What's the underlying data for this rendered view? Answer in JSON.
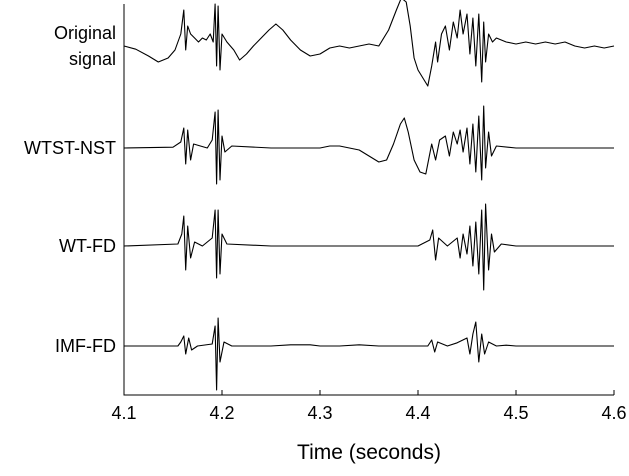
{
  "chart_data": {
    "type": "line",
    "title": "",
    "xlabel": "Time (seconds)",
    "ylabel": "",
    "xlim": [
      4.1,
      4.6
    ],
    "xticks": [
      4.1,
      4.2,
      4.3,
      4.4,
      4.5,
      4.6
    ],
    "xtick_labels": [
      "4.1",
      "4.2",
      "4.3",
      "4.4",
      "4.5",
      "4.6"
    ],
    "grid": false,
    "legend": "none",
    "series": [
      {
        "name": "Original\nsignal",
        "label_lines": [
          "Original",
          "signal"
        ],
        "points": [
          [
            4.1,
            0
          ],
          [
            4.112,
            -0.08
          ],
          [
            4.125,
            -0.25
          ],
          [
            4.135,
            -0.4
          ],
          [
            4.145,
            -0.3
          ],
          [
            4.152,
            -0.1
          ],
          [
            4.158,
            0.3
          ],
          [
            4.161,
            0.9
          ],
          [
            4.163,
            -0.1
          ],
          [
            4.165,
            0.5
          ],
          [
            4.168,
            0.3
          ],
          [
            4.172,
            0.2
          ],
          [
            4.176,
            0.1
          ],
          [
            4.18,
            0.2
          ],
          [
            4.184,
            0.15
          ],
          [
            4.188,
            0.3
          ],
          [
            4.191,
            0.1
          ],
          [
            4.193,
            1.05
          ],
          [
            4.1945,
            -0.5
          ],
          [
            4.196,
            1.0
          ],
          [
            4.198,
            -0.6
          ],
          [
            4.2,
            0.3
          ],
          [
            4.205,
            0.1
          ],
          [
            4.212,
            -0.1
          ],
          [
            4.218,
            -0.35
          ],
          [
            4.225,
            -0.2
          ],
          [
            4.232,
            0
          ],
          [
            4.24,
            0.2
          ],
          [
            4.248,
            0.4
          ],
          [
            4.255,
            0.55
          ],
          [
            4.262,
            0.4
          ],
          [
            4.27,
            0.15
          ],
          [
            4.28,
            -0.1
          ],
          [
            4.29,
            -0.25
          ],
          [
            4.3,
            -0.2
          ],
          [
            4.31,
            -0.05
          ],
          [
            4.32,
            0
          ],
          [
            4.33,
            -0.05
          ],
          [
            4.34,
            0
          ],
          [
            4.35,
            0.05
          ],
          [
            4.36,
            0
          ],
          [
            4.37,
            0.4
          ],
          [
            4.378,
            0.9
          ],
          [
            4.383,
            1.2
          ],
          [
            4.388,
            1.1
          ],
          [
            4.392,
            0.5
          ],
          [
            4.396,
            -0.3
          ],
          [
            4.4,
            -0.6
          ],
          [
            4.405,
            -0.8
          ],
          [
            4.41,
            -1.0
          ],
          [
            4.414,
            -0.5
          ],
          [
            4.418,
            0.1
          ],
          [
            4.42,
            -0.4
          ],
          [
            4.424,
            0.3
          ],
          [
            4.428,
            0.5
          ],
          [
            4.432,
            -0.1
          ],
          [
            4.436,
            0.6
          ],
          [
            4.44,
            0.2
          ],
          [
            4.443,
            0.9
          ],
          [
            4.446,
            0.3
          ],
          [
            4.45,
            0.8
          ],
          [
            4.453,
            -0.2
          ],
          [
            4.456,
            0.7
          ],
          [
            4.459,
            -0.5
          ],
          [
            4.462,
            0.8
          ],
          [
            4.465,
            -0.9
          ],
          [
            4.467,
            0.6
          ],
          [
            4.469,
            -0.4
          ],
          [
            4.472,
            0.3
          ],
          [
            4.476,
            0.1
          ],
          [
            4.48,
            0.2
          ],
          [
            4.49,
            0.1
          ],
          [
            4.5,
            0.05
          ],
          [
            4.51,
            0.1
          ],
          [
            4.52,
            0.05
          ],
          [
            4.53,
            0.1
          ],
          [
            4.54,
            0.05
          ],
          [
            4.55,
            0.1
          ],
          [
            4.56,
            0
          ],
          [
            4.57,
            -0.05
          ],
          [
            4.58,
            0
          ],
          [
            4.59,
            -0.05
          ],
          [
            4.6,
            0
          ]
        ]
      },
      {
        "name": "WTST-NST",
        "label_lines": [
          "WTST-NST"
        ],
        "points": [
          [
            4.1,
            0
          ],
          [
            4.15,
            0.02
          ],
          [
            4.158,
            0.15
          ],
          [
            4.161,
            0.5
          ],
          [
            4.163,
            -0.4
          ],
          [
            4.165,
            0.45
          ],
          [
            4.168,
            -0.3
          ],
          [
            4.171,
            0.1
          ],
          [
            4.178,
            0.05
          ],
          [
            4.185,
            0
          ],
          [
            4.19,
            0.2
          ],
          [
            4.193,
            0.9
          ],
          [
            4.1945,
            -0.9
          ],
          [
            4.196,
            0.95
          ],
          [
            4.198,
            -0.8
          ],
          [
            4.2,
            0.3
          ],
          [
            4.203,
            -0.1
          ],
          [
            4.21,
            0.05
          ],
          [
            4.25,
            0
          ],
          [
            4.3,
            0
          ],
          [
            4.31,
            0.05
          ],
          [
            4.32,
            0.05
          ],
          [
            4.33,
            0
          ],
          [
            4.34,
            -0.05
          ],
          [
            4.35,
            -0.2
          ],
          [
            4.36,
            -0.35
          ],
          [
            4.368,
            -0.3
          ],
          [
            4.375,
            0.1
          ],
          [
            4.382,
            0.6
          ],
          [
            4.386,
            0.75
          ],
          [
            4.39,
            0.4
          ],
          [
            4.396,
            -0.3
          ],
          [
            4.402,
            -0.6
          ],
          [
            4.408,
            -0.65
          ],
          [
            4.414,
            0.1
          ],
          [
            4.418,
            -0.3
          ],
          [
            4.422,
            0.2
          ],
          [
            4.428,
            0.3
          ],
          [
            4.432,
            -0.2
          ],
          [
            4.436,
            0.4
          ],
          [
            4.44,
            0.1
          ],
          [
            4.443,
            0.45
          ],
          [
            4.446,
            -0.1
          ],
          [
            4.45,
            0.5
          ],
          [
            4.453,
            -0.4
          ],
          [
            4.456,
            0.6
          ],
          [
            4.459,
            -0.6
          ],
          [
            4.462,
            0.8
          ],
          [
            4.465,
            -0.8
          ],
          [
            4.467,
            1.05
          ],
          [
            4.469,
            -0.5
          ],
          [
            4.472,
            0.4
          ],
          [
            4.475,
            -0.2
          ],
          [
            4.48,
            0.05
          ],
          [
            4.5,
            0
          ],
          [
            4.6,
            0
          ]
        ]
      },
      {
        "name": "WT-FD",
        "label_lines": [
          "WT-FD"
        ],
        "points": [
          [
            4.1,
            0
          ],
          [
            4.155,
            0.05
          ],
          [
            4.159,
            0.3
          ],
          [
            4.161,
            0.75
          ],
          [
            4.163,
            -0.6
          ],
          [
            4.165,
            0.5
          ],
          [
            4.168,
            -0.3
          ],
          [
            4.172,
            0.1
          ],
          [
            4.18,
            0
          ],
          [
            4.19,
            0.2
          ],
          [
            4.193,
            0.9
          ],
          [
            4.1945,
            -0.8
          ],
          [
            4.196,
            0.9
          ],
          [
            4.198,
            -0.7
          ],
          [
            4.2,
            0.3
          ],
          [
            4.205,
            0.05
          ],
          [
            4.25,
            0
          ],
          [
            4.3,
            0
          ],
          [
            4.35,
            0
          ],
          [
            4.4,
            0
          ],
          [
            4.412,
            0.15
          ],
          [
            4.415,
            0.4
          ],
          [
            4.418,
            -0.35
          ],
          [
            4.421,
            0.2
          ],
          [
            4.43,
            0
          ],
          [
            4.44,
            0.2
          ],
          [
            4.443,
            -0.3
          ],
          [
            4.446,
            0.3
          ],
          [
            4.45,
            -0.2
          ],
          [
            4.453,
            0.5
          ],
          [
            4.456,
            -0.5
          ],
          [
            4.459,
            0.6
          ],
          [
            4.462,
            -0.7
          ],
          [
            4.465,
            0.9
          ],
          [
            4.467,
            -1.1
          ],
          [
            4.469,
            1.05
          ],
          [
            4.472,
            -0.6
          ],
          [
            4.475,
            0.3
          ],
          [
            4.478,
            -0.15
          ],
          [
            4.485,
            0.05
          ],
          [
            4.5,
            0
          ],
          [
            4.6,
            0
          ]
        ]
      },
      {
        "name": "IMF-FD",
        "label_lines": [
          "IMF-FD"
        ],
        "points": [
          [
            4.1,
            0
          ],
          [
            4.155,
            0
          ],
          [
            4.158,
            0.1
          ],
          [
            4.161,
            0.25
          ],
          [
            4.163,
            -0.2
          ],
          [
            4.166,
            0.2
          ],
          [
            4.169,
            -0.1
          ],
          [
            4.175,
            0
          ],
          [
            4.19,
            0.05
          ],
          [
            4.193,
            0.5
          ],
          [
            4.1945,
            -1.1
          ],
          [
            4.196,
            0.7
          ],
          [
            4.198,
            -0.4
          ],
          [
            4.202,
            0.1
          ],
          [
            4.21,
            0
          ],
          [
            4.25,
            0
          ],
          [
            4.27,
            0.03
          ],
          [
            4.29,
            0.03
          ],
          [
            4.3,
            0
          ],
          [
            4.32,
            0
          ],
          [
            4.34,
            0.03
          ],
          [
            4.36,
            0
          ],
          [
            4.41,
            0
          ],
          [
            4.414,
            0.15
          ],
          [
            4.417,
            -0.15
          ],
          [
            4.42,
            0.1
          ],
          [
            4.43,
            0
          ],
          [
            4.44,
            0.08
          ],
          [
            4.45,
            0.2
          ],
          [
            4.453,
            -0.2
          ],
          [
            4.456,
            0.3
          ],
          [
            4.459,
            0.6
          ],
          [
            4.462,
            -0.4
          ],
          [
            4.465,
            0.3
          ],
          [
            4.468,
            -0.2
          ],
          [
            4.472,
            0.1
          ],
          [
            4.48,
            0
          ],
          [
            4.49,
            0.02
          ],
          [
            4.5,
            0
          ],
          [
            4.6,
            0
          ]
        ]
      }
    ]
  }
}
